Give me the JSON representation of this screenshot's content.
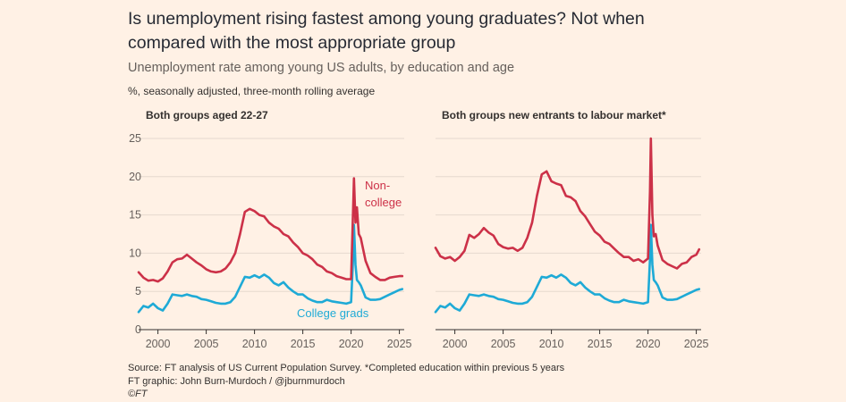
{
  "title": "Is unemployment rising fastest among young graduates? Not when compared with the most appropriate group",
  "subtitle": "Unemployment rate among young US adults, by education and age",
  "unit_note": "%, seasonally adjusted, three-month rolling average",
  "colors": {
    "noncollege": "#cc3148",
    "college": "#1eaad6",
    "axis": "#33302e",
    "grid": "#e6d9ce",
    "background": "#fff1e5"
  },
  "chart_data": [
    {
      "type": "line",
      "title": "Both groups aged 22-27",
      "xlabel": "",
      "ylabel": "%",
      "xlim": [
        1998,
        2025.5
      ],
      "ylim": [
        0,
        25
      ],
      "yticks": [
        0,
        5,
        10,
        15,
        20,
        25
      ],
      "xticks": [
        2000,
        2005,
        2010,
        2015,
        2020,
        2025
      ],
      "annotations": [
        {
          "text": "Non-",
          "series": "Non-college"
        },
        {
          "text": "college",
          "series": "Non-college"
        },
        {
          "text": "College grads",
          "series": "College grads"
        }
      ],
      "series": [
        {
          "name": "Non-college",
          "x": [
            1998,
            1998.5,
            1999,
            1999.5,
            2000,
            2000.5,
            2001,
            2001.5,
            2002,
            2002.5,
            2003,
            2003.5,
            2004,
            2004.5,
            2005,
            2005.5,
            2006,
            2006.5,
            2007,
            2007.5,
            2008,
            2008.5,
            2009,
            2009.5,
            2010,
            2010.5,
            2011,
            2011.5,
            2012,
            2012.5,
            2013,
            2013.5,
            2014,
            2014.5,
            2015,
            2015.5,
            2016,
            2016.5,
            2017,
            2017.5,
            2018,
            2018.5,
            2019,
            2019.5,
            2020.0,
            2020.2,
            2020.3,
            2020.45,
            2020.6,
            2020.8,
            2021,
            2021.5,
            2022,
            2022.5,
            2023,
            2023.5,
            2024,
            2024.5,
            2025,
            2025.3
          ],
          "values": [
            7.5,
            6.8,
            6.4,
            6.5,
            6.3,
            6.7,
            7.6,
            8.8,
            9.2,
            9.3,
            9.8,
            9.3,
            8.8,
            8.4,
            7.9,
            7.6,
            7.5,
            7.6,
            8.0,
            8.8,
            10.0,
            12.5,
            15.4,
            15.8,
            15.5,
            15.0,
            14.8,
            14.0,
            13.5,
            13.2,
            12.5,
            12.2,
            11.4,
            10.8,
            10.0,
            9.7,
            9.2,
            8.5,
            8.2,
            7.6,
            7.4,
            7.0,
            6.8,
            6.6,
            6.6,
            15.5,
            19.8,
            14.0,
            16.0,
            12.5,
            12.0,
            9.0,
            7.4,
            6.9,
            6.5,
            6.5,
            6.8,
            6.9,
            7.0,
            7.0
          ]
        },
        {
          "name": "College grads",
          "x": [
            1998,
            1998.5,
            1999,
            1999.5,
            2000,
            2000.5,
            2001,
            2001.5,
            2002,
            2002.5,
            2003,
            2003.5,
            2004,
            2004.5,
            2005,
            2005.5,
            2006,
            2006.5,
            2007,
            2007.5,
            2008,
            2008.5,
            2009,
            2009.5,
            2010,
            2010.5,
            2011,
            2011.5,
            2012,
            2012.5,
            2013,
            2013.5,
            2014,
            2014.5,
            2015,
            2015.5,
            2016,
            2016.5,
            2017,
            2017.5,
            2018,
            2018.5,
            2019,
            2019.5,
            2020.0,
            2020.2,
            2020.3,
            2020.45,
            2020.6,
            2020.8,
            2021,
            2021.5,
            2022,
            2022.5,
            2023,
            2023.5,
            2024,
            2024.5,
            2025,
            2025.3
          ],
          "values": [
            2.3,
            3.1,
            2.9,
            3.4,
            2.8,
            2.5,
            3.4,
            4.6,
            4.5,
            4.4,
            4.6,
            4.4,
            4.3,
            4.0,
            3.9,
            3.7,
            3.5,
            3.4,
            3.4,
            3.6,
            4.3,
            5.6,
            6.9,
            6.8,
            7.1,
            6.8,
            7.2,
            6.8,
            6.1,
            5.8,
            6.2,
            5.5,
            5.0,
            4.6,
            4.6,
            4.1,
            3.8,
            3.6,
            3.6,
            3.9,
            3.7,
            3.6,
            3.5,
            3.4,
            3.6,
            9.2,
            13.7,
            8.5,
            6.5,
            6.2,
            5.8,
            4.2,
            3.9,
            3.9,
            4.0,
            4.3,
            4.6,
            4.9,
            5.2,
            5.3
          ]
        }
      ]
    },
    {
      "type": "line",
      "title": "Both groups new entrants to labour market*",
      "xlabel": "",
      "ylabel": "%",
      "xlim": [
        1998,
        2025.5
      ],
      "ylim": [
        0,
        25
      ],
      "yticks": [
        0,
        5,
        10,
        15,
        20,
        25
      ],
      "xticks": [
        2000,
        2005,
        2010,
        2015,
        2020,
        2025
      ],
      "series": [
        {
          "name": "Non-college",
          "x": [
            1998,
            1998.5,
            1999,
            1999.5,
            2000,
            2000.5,
            2001,
            2001.5,
            2002,
            2002.5,
            2003,
            2003.5,
            2004,
            2004.5,
            2005,
            2005.5,
            2006,
            2006.5,
            2007,
            2007.5,
            2008,
            2008.5,
            2009,
            2009.5,
            2010,
            2010.5,
            2011,
            2011.5,
            2012,
            2012.5,
            2013,
            2013.5,
            2014,
            2014.5,
            2015,
            2015.5,
            2016,
            2016.5,
            2017,
            2017.5,
            2018,
            2018.5,
            2019,
            2019.5,
            2020.0,
            2020.2,
            2020.3,
            2020.45,
            2020.6,
            2020.8,
            2021,
            2021.5,
            2022,
            2022.5,
            2023,
            2023.5,
            2024,
            2024.5,
            2025,
            2025.3
          ],
          "values": [
            10.7,
            9.6,
            9.3,
            9.5,
            9.0,
            9.5,
            10.3,
            12.4,
            12.0,
            12.5,
            13.3,
            12.7,
            12.3,
            11.2,
            10.8,
            10.6,
            10.7,
            10.3,
            10.7,
            12.0,
            14.0,
            17.5,
            20.3,
            20.7,
            19.4,
            19.1,
            18.9,
            17.5,
            17.3,
            16.8,
            15.5,
            14.8,
            13.8,
            12.8,
            12.3,
            11.5,
            11.2,
            10.6,
            10.0,
            9.5,
            9.5,
            9.0,
            9.2,
            8.8,
            9.3,
            18.0,
            25.0,
            15.0,
            12.2,
            12.5,
            11.0,
            9.1,
            8.6,
            8.3,
            8.0,
            8.6,
            8.8,
            9.5,
            9.8,
            10.5
          ]
        },
        {
          "name": "College grads",
          "x": [
            1998,
            1998.5,
            1999,
            1999.5,
            2000,
            2000.5,
            2001,
            2001.5,
            2002,
            2002.5,
            2003,
            2003.5,
            2004,
            2004.5,
            2005,
            2005.5,
            2006,
            2006.5,
            2007,
            2007.5,
            2008,
            2008.5,
            2009,
            2009.5,
            2010,
            2010.5,
            2011,
            2011.5,
            2012,
            2012.5,
            2013,
            2013.5,
            2014,
            2014.5,
            2015,
            2015.5,
            2016,
            2016.5,
            2017,
            2017.5,
            2018,
            2018.5,
            2019,
            2019.5,
            2020.0,
            2020.2,
            2020.3,
            2020.45,
            2020.6,
            2020.8,
            2021,
            2021.5,
            2022,
            2022.5,
            2023,
            2023.5,
            2024,
            2024.5,
            2025,
            2025.3
          ],
          "values": [
            2.3,
            3.1,
            2.9,
            3.4,
            2.8,
            2.5,
            3.4,
            4.6,
            4.5,
            4.4,
            4.6,
            4.4,
            4.3,
            4.0,
            3.9,
            3.7,
            3.5,
            3.4,
            3.4,
            3.6,
            4.3,
            5.6,
            6.9,
            6.8,
            7.1,
            6.8,
            7.2,
            6.8,
            6.1,
            5.8,
            6.2,
            5.5,
            5.0,
            4.6,
            4.6,
            4.1,
            3.8,
            3.6,
            3.6,
            3.9,
            3.7,
            3.6,
            3.5,
            3.4,
            3.6,
            9.2,
            13.7,
            8.5,
            6.5,
            6.2,
            5.8,
            4.2,
            3.9,
            3.9,
            4.0,
            4.3,
            4.6,
            4.9,
            5.2,
            5.3
          ]
        }
      ]
    }
  ],
  "footer": {
    "source": "Source: FT analysis of US Current Population Survey. *Completed education within previous 5 years",
    "graphic": "FT graphic: John Burn-Murdoch / @jburnmurdoch",
    "copyright": "©FT"
  }
}
